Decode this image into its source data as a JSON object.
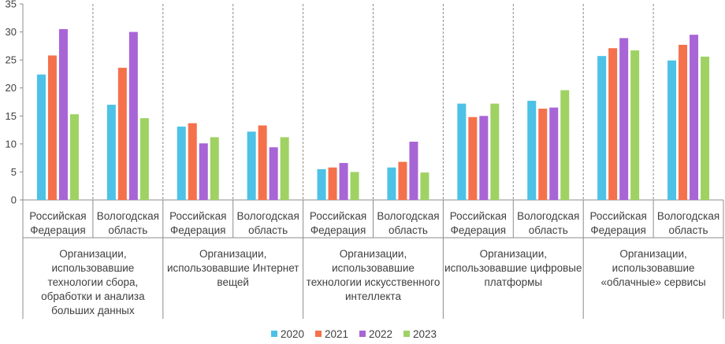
{
  "chart_data": {
    "type": "bar",
    "title": "",
    "xlabel": "",
    "ylabel": "",
    "ylim": [
      0,
      35
    ],
    "yticks": [
      0,
      5,
      10,
      15,
      20,
      25,
      30,
      35
    ],
    "grid": false,
    "legend_position": "bottom",
    "series_names": [
      "2020",
      "2021",
      "2022",
      "2023"
    ],
    "colors": [
      "#4DC1E6",
      "#F5714B",
      "#A865D6",
      "#9FD263"
    ],
    "groups": [
      {
        "label": [
          "Организации,",
          "использовавшие",
          "технологии сбора,",
          "обработки и анализа",
          "больших данных"
        ],
        "categories": [
          {
            "label": [
              "Российская",
              "Федерация"
            ],
            "values": [
              22.4,
              25.8,
              30.5,
              15.3
            ]
          },
          {
            "label": [
              "Вологодская",
              "область"
            ],
            "values": [
              17.0,
              23.6,
              30.0,
              14.6
            ]
          }
        ]
      },
      {
        "label": [
          "Организации,",
          "использовавшие Интернет",
          "вещей"
        ],
        "categories": [
          {
            "label": [
              "Российская",
              "Федерация"
            ],
            "values": [
              13.1,
              13.7,
              10.1,
              11.2
            ]
          },
          {
            "label": [
              "Вологодская",
              "область"
            ],
            "values": [
              12.2,
              13.3,
              9.4,
              11.2
            ]
          }
        ]
      },
      {
        "label": [
          "Организации,",
          "использовавшие",
          "технологии искусственного",
          "интеллекта"
        ],
        "categories": [
          {
            "label": [
              "Российская",
              "Федерация"
            ],
            "values": [
              5.5,
              5.8,
              6.6,
              5.0
            ]
          },
          {
            "label": [
              "Вологодская",
              "область"
            ],
            "values": [
              5.8,
              6.8,
              10.4,
              4.9
            ]
          }
        ]
      },
      {
        "label": [
          "Организации,",
          "использовавшие цифровые",
          "платформы"
        ],
        "categories": [
          {
            "label": [
              "Российская",
              "Федерация"
            ],
            "values": [
              17.2,
              14.8,
              15.0,
              17.2
            ]
          },
          {
            "label": [
              "Вологодская",
              "область"
            ],
            "values": [
              17.7,
              16.3,
              16.5,
              19.6
            ]
          }
        ]
      },
      {
        "label": [
          "Организации,",
          "использовавшие",
          "«облачные» сервисы"
        ],
        "categories": [
          {
            "label": [
              "Российская",
              "Федерация"
            ],
            "values": [
              25.7,
              27.1,
              28.9,
              26.7
            ]
          },
          {
            "label": [
              "Вологодская",
              "область"
            ],
            "values": [
              24.9,
              27.7,
              29.5,
              25.6
            ]
          }
        ]
      }
    ]
  }
}
